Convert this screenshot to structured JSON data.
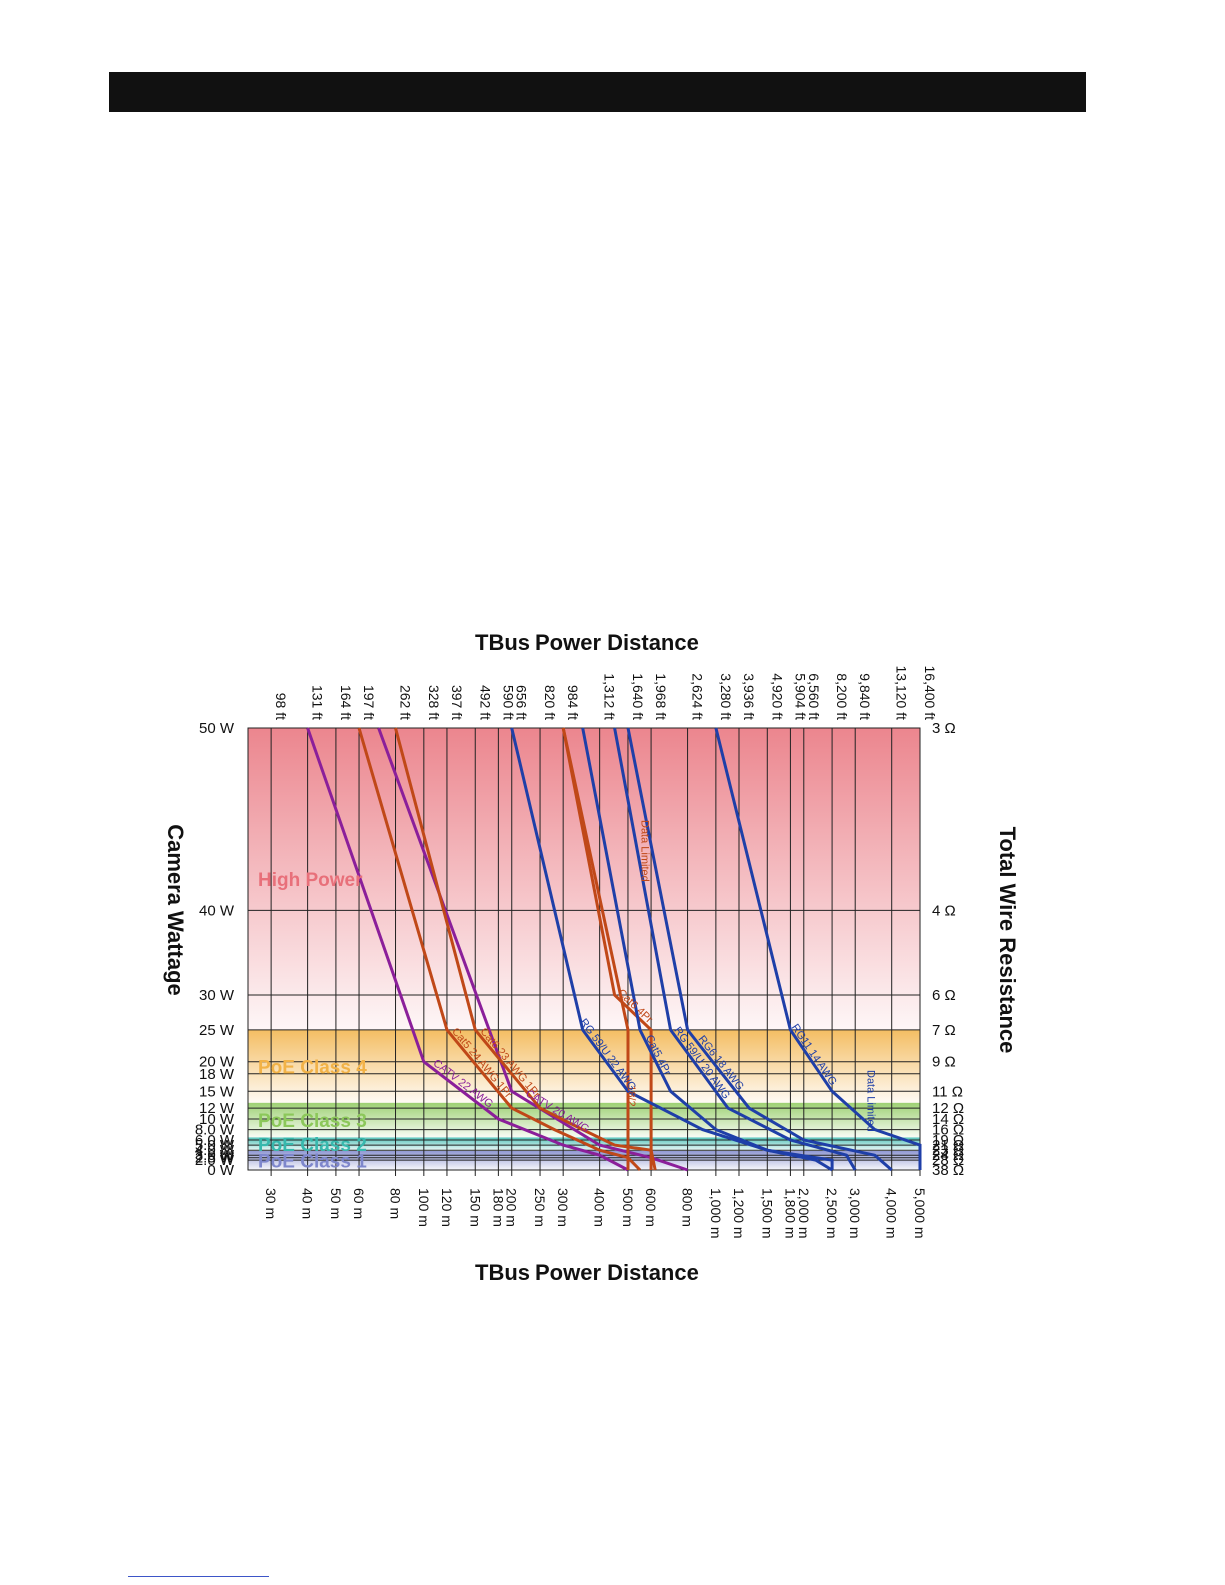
{
  "chart_data": {
    "type": "line",
    "title": "Power Distance",
    "title_logo": "TBus",
    "ylabel_left": "Camera Wattage",
    "ylabel_right": "Total Wire Resistance",
    "wattage_ticks": [
      "50 W",
      "40 W",
      "30 W",
      "25 W",
      "20 W",
      "18 W",
      "15 W",
      "12 W",
      "10 W",
      "8.0 W",
      "6.0 W",
      "5.0 W",
      "4.0 W",
      "3.0 W",
      "2.5 W",
      "2.0 W",
      "0 W"
    ],
    "resistance_ticks": [
      "3 Ω",
      "4 Ω",
      "6 Ω",
      "7 Ω",
      "9 Ω",
      "11 Ω",
      "12 Ω",
      "14 Ω",
      "16 Ω",
      "19 Ω",
      "21 Ω",
      "23 Ω",
      "24 Ω",
      "28 Ω",
      "38 Ω"
    ],
    "feet_ticks": [
      "98 ft",
      "131 ft",
      "164 ft",
      "197 ft",
      "262 ft",
      "328 ft",
      "397 ft",
      "492 ft",
      "590 ft",
      "656 ft",
      "820 ft",
      "984 ft",
      "1,312 ft",
      "1,640 ft",
      "1,968 ft",
      "2,624 ft",
      "3,280 ft",
      "3,936 ft",
      "4,920 ft",
      "5,904 ft",
      "6,560 ft",
      "8,200 ft",
      "9,840 ft",
      "13,120 ft",
      "16,400 ft"
    ],
    "meter_ticks": [
      "30 m",
      "40 m",
      "50 m",
      "60 m",
      "80 m",
      "100 m",
      "120 m",
      "150 m",
      "180 m",
      "200 m",
      "250 m",
      "300 m",
      "400 m",
      "500 m",
      "600 m",
      "800 m",
      "1,000 m",
      "1,200 m",
      "1,500 m",
      "1,800 m",
      "2,000 m",
      "2,500 m",
      "3,000 m",
      "4,000 m",
      "5,000 m"
    ],
    "bands": [
      {
        "label": "High Power",
        "color": "#e8707a",
        "from_w": 25,
        "to_w": 50
      },
      {
        "label": "PoE Class 4",
        "color": "#f2b247",
        "from_w": 12.95,
        "to_w": 25
      },
      {
        "label": "PoE Class 3",
        "color": "#8cc85a",
        "from_w": 6.49,
        "to_w": 12.95
      },
      {
        "label": "PoE Class 2",
        "color": "#37b8ad",
        "from_w": 3.84,
        "to_w": 6.49
      },
      {
        "label": "PoE Class 1",
        "color": "#7e87cc",
        "from_w": 0,
        "to_w": 3.84
      }
    ],
    "series": [
      {
        "name": "CATV 22 AWG",
        "color": "#8b1f9a",
        "points": [
          [
            40,
            50
          ],
          [
            100,
            20
          ],
          [
            180,
            10
          ],
          [
            300,
            5
          ],
          [
            400,
            3
          ],
          [
            500,
            0
          ]
        ]
      },
      {
        "name": "CATV 20 AWG",
        "color": "#8b1f9a",
        "points": [
          [
            70,
            50
          ],
          [
            200,
            15
          ],
          [
            400,
            5
          ],
          [
            600,
            2.5
          ],
          [
            800,
            0
          ]
        ]
      },
      {
        "name": "Cat5 24 AWG 1Pr",
        "color": "#c04818",
        "points": [
          [
            60,
            50
          ],
          [
            120,
            25
          ],
          [
            200,
            12
          ],
          [
            280,
            8
          ],
          [
            400,
            4
          ],
          [
            500,
            2.5
          ],
          [
            550,
            0
          ]
        ]
      },
      {
        "name": "Cat6 23 AWG 1Pr",
        "color": "#c04818",
        "points": [
          [
            80,
            50
          ],
          [
            150,
            25
          ],
          [
            250,
            12
          ],
          [
            350,
            8
          ],
          [
            450,
            5
          ],
          [
            600,
            4
          ],
          [
            620,
            0
          ]
        ]
      },
      {
        "name": "Cat6 4Pr",
        "color": "#c04818",
        "points": [
          [
            300,
            50
          ],
          [
            450,
            30
          ],
          [
            600,
            25
          ],
          [
            600,
            0
          ]
        ]
      },
      {
        "name": "18/2",
        "color": "#c04818",
        "points": [
          [
            300,
            50
          ],
          [
            500,
            25
          ],
          [
            500,
            0
          ]
        ]
      },
      {
        "name": "Cat5 4Pr",
        "color": "#1f3fa8",
        "points": [
          [
            350,
            50
          ],
          [
            550,
            25
          ],
          [
            700,
            15
          ],
          [
            1000,
            8
          ],
          [
            1500,
            4
          ],
          [
            2200,
            2
          ],
          [
            2500,
            0
          ]
        ]
      },
      {
        "name": "RG 59/U 22 AWG",
        "color": "#1f3fa8",
        "points": [
          [
            200,
            50
          ],
          [
            350,
            25
          ],
          [
            500,
            15
          ],
          [
            900,
            8
          ],
          [
            1500,
            4
          ],
          [
            2500,
            2
          ],
          [
            2500,
            0
          ]
        ]
      },
      {
        "name": "RG 59/U 20 AWG",
        "color": "#1f3fa8",
        "points": [
          [
            450,
            50
          ],
          [
            700,
            25
          ],
          [
            1100,
            12
          ],
          [
            1800,
            6
          ],
          [
            2800,
            3
          ],
          [
            3000,
            0
          ]
        ]
      },
      {
        "name": "RG6 18 AWG",
        "color": "#1f3fa8",
        "points": [
          [
            500,
            50
          ],
          [
            800,
            25
          ],
          [
            1300,
            12
          ],
          [
            2000,
            6
          ],
          [
            3500,
            3
          ],
          [
            4000,
            0
          ]
        ]
      },
      {
        "name": "RG11 14 AWG",
        "color": "#1f3fa8",
        "points": [
          [
            1000,
            50
          ],
          [
            1800,
            25
          ],
          [
            2500,
            15
          ],
          [
            3500,
            8
          ],
          [
            5000,
            5
          ],
          [
            5000,
            0
          ]
        ]
      }
    ],
    "annotations": [
      "Data Limited",
      "Data Limited"
    ]
  }
}
